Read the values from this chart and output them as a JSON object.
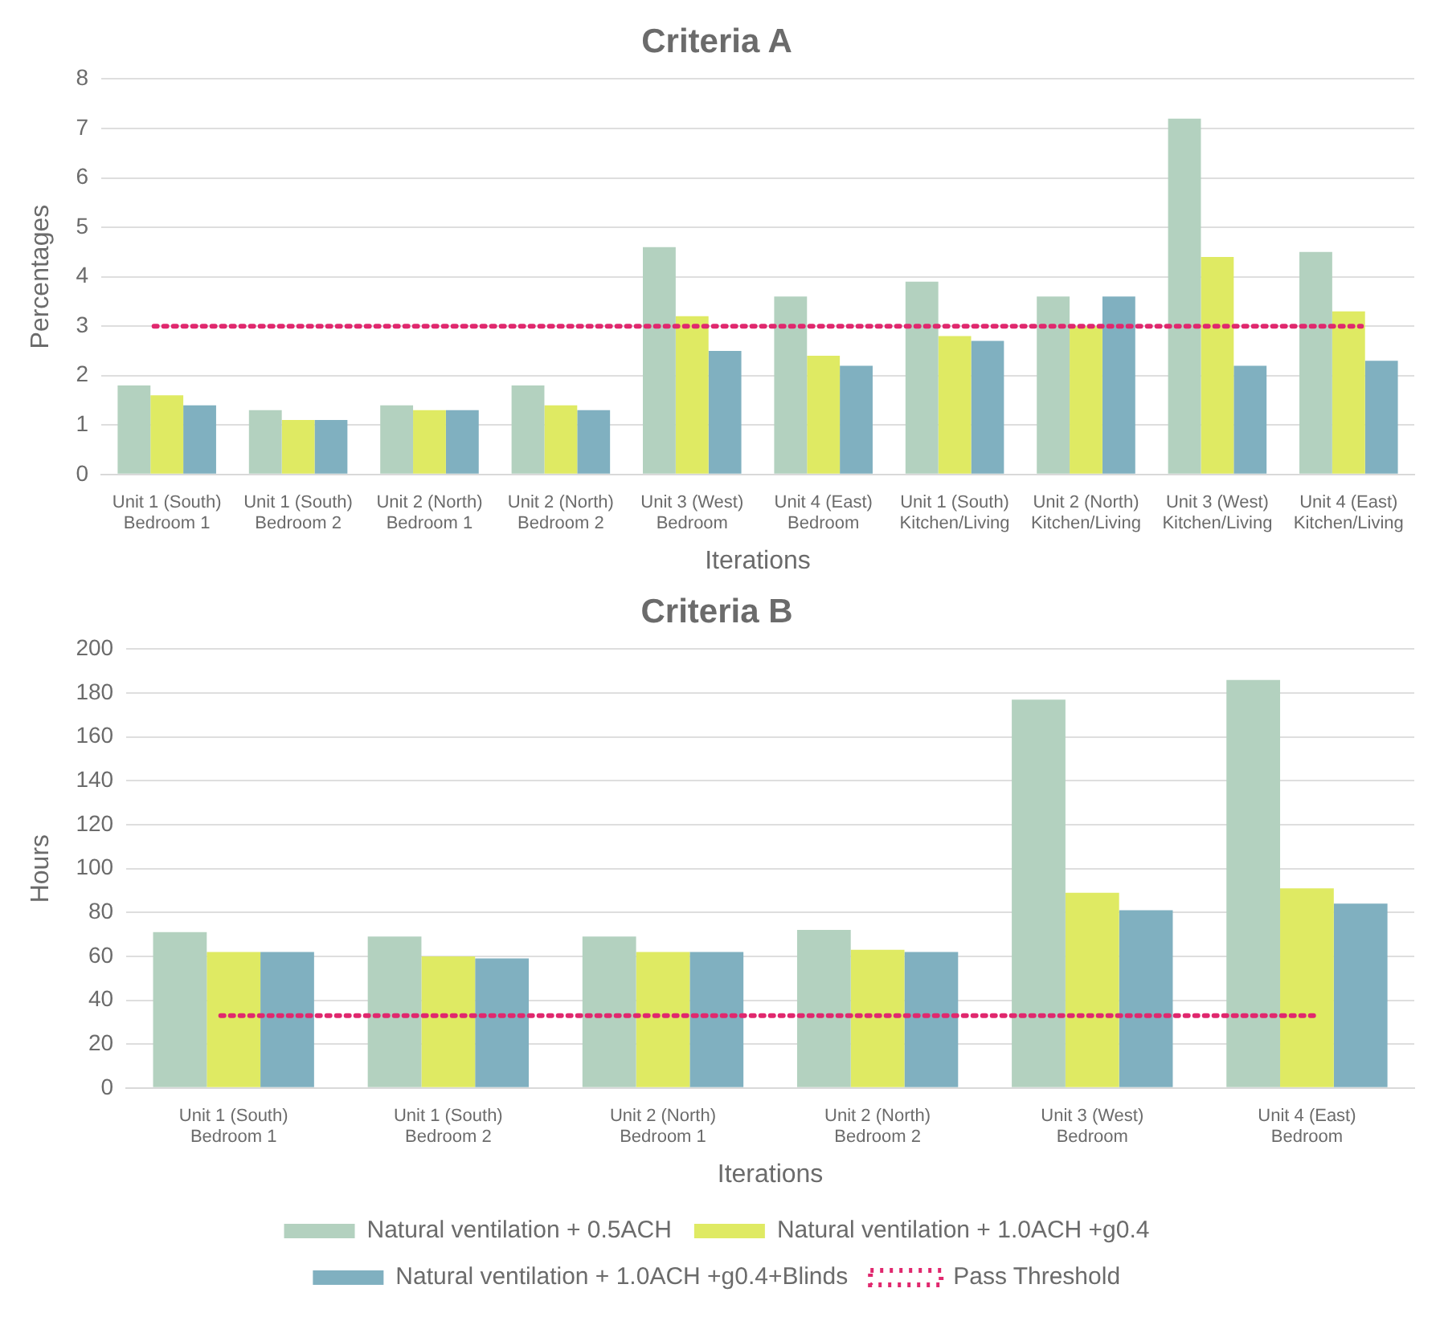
{
  "chart_data": [
    {
      "type": "bar",
      "title": "Criteria A",
      "xlabel": "Iterations",
      "ylabel": "Percentages",
      "categories": [
        "Unit 1 (South)\nBedroom 1",
        "Unit 1 (South)\nBedroom 2",
        "Unit 2 (North)\nBedroom 1",
        "Unit 2 (North)\nBedroom 2",
        "Unit 3 (West)\nBedroom",
        "Unit 4 (East)\nBedroom",
        "Unit 1 (South)\nKitchen/Living",
        "Unit 2 (North)\nKitchen/Living",
        "Unit 3 (West)\nKitchen/Living",
        "Unit 4 (East)\nKitchen/Living"
      ],
      "series": [
        {
          "color": "#b3d1bf",
          "values": [
            1.8,
            1.3,
            1.4,
            1.8,
            4.6,
            3.6,
            3.9,
            3.6,
            7.2,
            4.5
          ]
        },
        {
          "color": "#dfea63",
          "values": [
            1.6,
            1.1,
            1.3,
            1.4,
            3.2,
            2.4,
            2.8,
            3.0,
            4.4,
            3.3
          ]
        },
        {
          "color": "#80b0c0",
          "values": [
            1.4,
            1.1,
            1.3,
            1.3,
            2.5,
            2.2,
            2.7,
            3.6,
            2.2,
            2.3
          ]
        }
      ],
      "ylim": [
        0,
        8
      ],
      "yticks": [
        0,
        1,
        2,
        3,
        4,
        5,
        6,
        7,
        8
      ],
      "grid": "y",
      "legend": false,
      "ref_lines": [
        {
          "axis": "y",
          "value": 3,
          "color": "#e0286e",
          "line_style": "dotted"
        }
      ]
    },
    {
      "type": "bar",
      "title": "Criteria B",
      "xlabel": "Iterations",
      "ylabel": "Hours",
      "categories": [
        "Unit 1 (South)\nBedroom 1",
        "Unit 1 (South)\nBedroom 2",
        "Unit 2 (North)\nBedroom 1",
        "Unit 2 (North)\nBedroom 2",
        "Unit 3 (West)\nBedroom",
        "Unit 4 (East)\nBedroom"
      ],
      "series": [
        {
          "name": "Natural ventilation + 0.5ACH",
          "color": "#b3d1bf",
          "values": [
            71,
            69,
            69,
            72,
            177,
            186
          ]
        },
        {
          "name": "Natural ventilation + 1.0ACH +g0.4",
          "color": "#dfea63",
          "values": [
            62,
            60,
            62,
            63,
            89,
            91
          ]
        },
        {
          "name": "Natural ventilation + 1.0ACH +g0.4+Blinds",
          "color": "#80b0c0",
          "values": [
            62,
            59,
            62,
            62,
            81,
            84
          ]
        }
      ],
      "ylim": [
        0,
        200
      ],
      "yticks": [
        0,
        20,
        40,
        60,
        80,
        100,
        120,
        140,
        160,
        180,
        200
      ],
      "grid": "y",
      "legend": "bottom",
      "ref_lines": [
        {
          "axis": "y",
          "value": 33,
          "label": "Pass Threshold",
          "color": "#e0286e",
          "line_style": "dotted"
        }
      ]
    }
  ]
}
